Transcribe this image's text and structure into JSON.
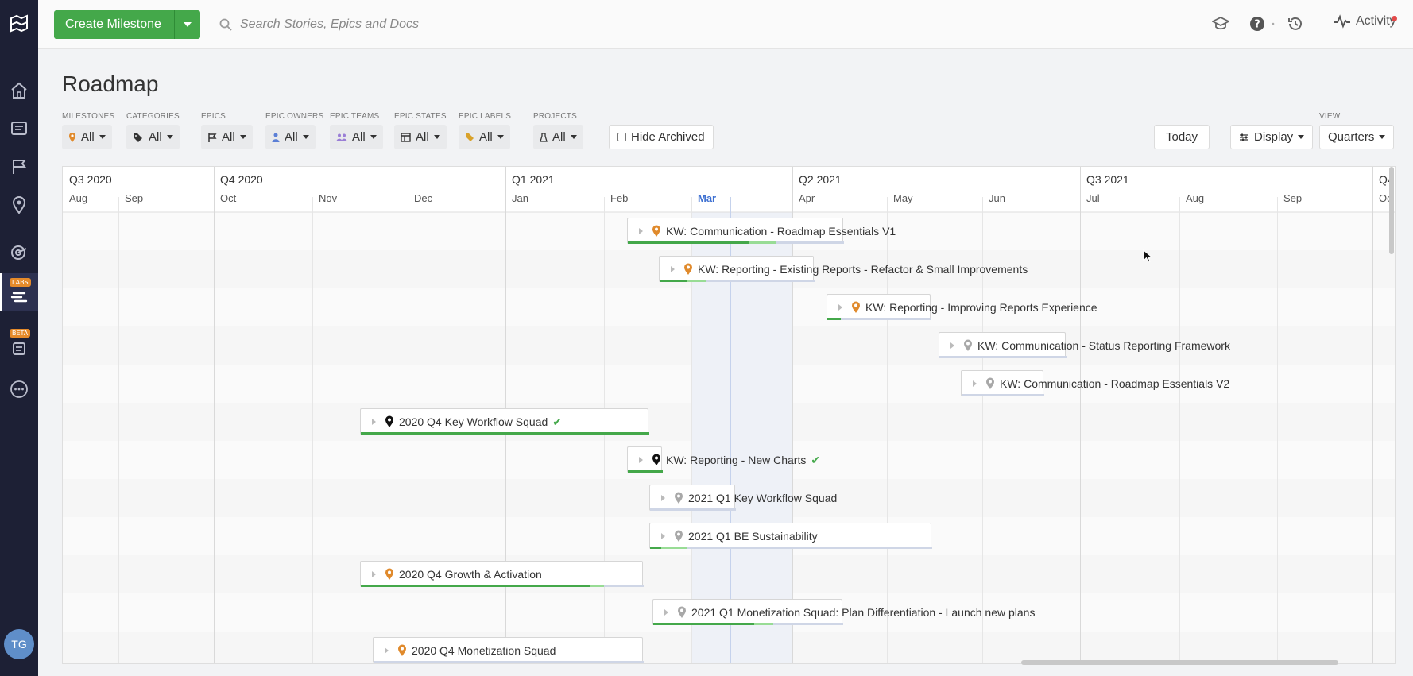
{
  "sidebar": {
    "items": [
      {
        "name": "home-icon"
      },
      {
        "name": "stories-icon"
      },
      {
        "name": "epics-icon"
      },
      {
        "name": "milestones-icon"
      },
      {
        "name": "reports-icon"
      },
      {
        "name": "roadmap-icon",
        "badge": "LABS"
      },
      {
        "name": "docs-icon",
        "badge": "BETA"
      },
      {
        "name": "more-icon"
      }
    ],
    "avatar": "TG"
  },
  "topbar": {
    "create_label": "Create Milestone",
    "search_placeholder": "Search Stories, Epics and Docs",
    "activity_label": "Activity"
  },
  "page": {
    "title": "Roadmap"
  },
  "filters": [
    {
      "label": "MILESTONES",
      "value": "All",
      "icon": "milestone-pin-icon"
    },
    {
      "label": "CATEGORIES",
      "value": "All",
      "icon": "tag-icon"
    },
    {
      "label": "EPICS",
      "value": "All",
      "icon": "epic-flag-icon"
    },
    {
      "label": "EPIC OWNERS",
      "value": "All",
      "icon": "owner-icon"
    },
    {
      "label": "EPIC TEAMS",
      "value": "All",
      "icon": "team-icon"
    },
    {
      "label": "EPIC STATES",
      "value": "All",
      "icon": "state-icon"
    },
    {
      "label": "EPIC LABELS",
      "value": "All",
      "icon": "label-icon"
    },
    {
      "label": "PROJECTS",
      "value": "All",
      "icon": "project-icon"
    }
  ],
  "hide_archived_label": "Hide Archived",
  "today_label": "Today",
  "display_label": "Display",
  "view": {
    "label": "VIEW",
    "value": "Quarters"
  },
  "timeline": {
    "quarters": [
      "Q3 2020",
      "Q4 2020",
      "Q1 2021",
      "Q2 2021",
      "Q3 2021",
      "Q4"
    ],
    "months": [
      "Aug",
      "Sep",
      "Oct",
      "Nov",
      "Dec",
      "Jan",
      "Feb",
      "Mar",
      "Apr",
      "May",
      "Jun",
      "Jul",
      "Aug",
      "Sep",
      "Oc"
    ],
    "current_month": "Mar"
  },
  "milestones": [
    {
      "name": "KW: Communication - Roadmap Essentials V1",
      "pin": "orange",
      "done": 0.56,
      "progress": 0.13,
      "complete": false
    },
    {
      "name": "KW: Reporting - Existing Reports - Refactor & Small Improvements",
      "pin": "orange",
      "done": 0.18,
      "progress": 0.12,
      "complete": false
    },
    {
      "name": "KW: Reporting - Improving Reports Experience",
      "pin": "orange",
      "done": 0.13,
      "progress": 0,
      "complete": false
    },
    {
      "name": "KW: Communication - Status Reporting Framework",
      "pin": "gray",
      "done": 0,
      "progress": 0,
      "complete": false
    },
    {
      "name": "KW: Communication - Roadmap Essentials V2",
      "pin": "gray",
      "done": 0,
      "progress": 0,
      "complete": false
    },
    {
      "name": "2020 Q4 Key Workflow Squad",
      "pin": "black",
      "done": 1,
      "progress": 0,
      "complete": true
    },
    {
      "name": "KW: Reporting - New Charts",
      "pin": "black",
      "done": 1,
      "progress": 0,
      "complete": true
    },
    {
      "name": "2021 Q1 Key Workflow Squad",
      "pin": "gray",
      "done": 0,
      "progress": 0,
      "complete": false
    },
    {
      "name": "2021 Q1 BE Sustainability",
      "pin": "gray",
      "done": 0.04,
      "progress": 0.09,
      "complete": false
    },
    {
      "name": "2020 Q4 Growth & Activation",
      "pin": "orange",
      "done": 0.81,
      "progress": 0.05,
      "complete": false
    },
    {
      "name": "2021 Q1 Monetization Squad: Plan Differentiation - Launch new plans",
      "pin": "gray",
      "done": 0.53,
      "progress": 0.1,
      "complete": false
    },
    {
      "name": "2020 Q4 Monetization Squad",
      "pin": "orange",
      "done": 0,
      "progress": 0,
      "complete": false
    }
  ],
  "colors": {
    "brand_green": "#44a84a",
    "sidebar_bg": "#1d2035",
    "pin_orange": "#e08a2c",
    "pin_gray": "#a8a8a8",
    "pin_black": "#111111",
    "today_line": "#c5d2ec"
  }
}
